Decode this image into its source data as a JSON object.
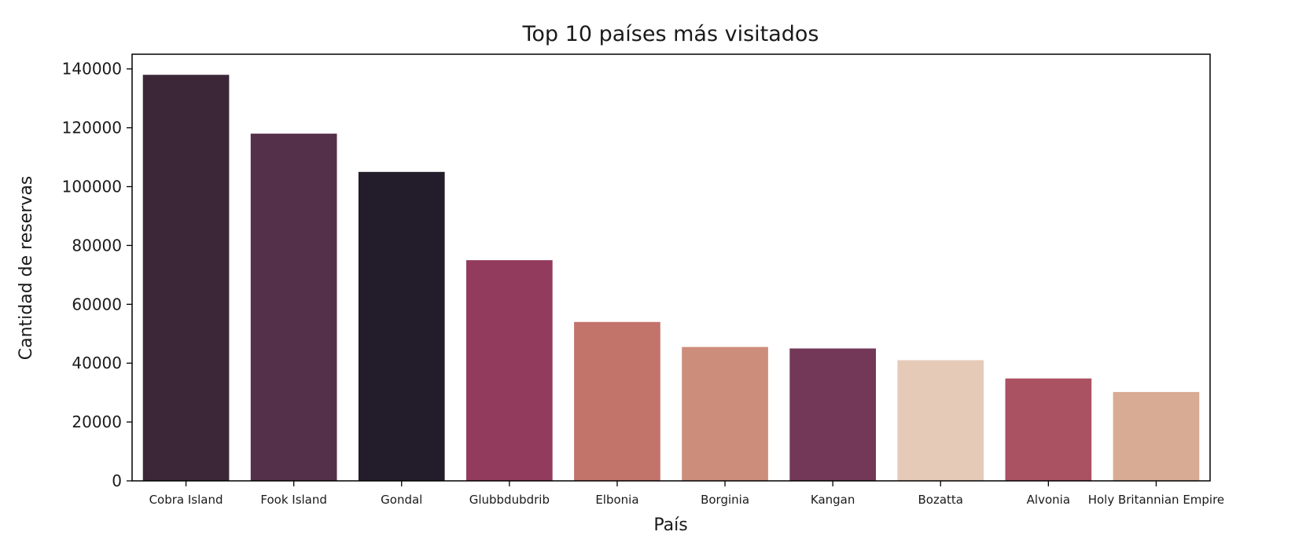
{
  "chart_data": {
    "type": "bar",
    "title": "Top 10 países más visitados",
    "xlabel": "País",
    "ylabel": "Cantidad de reservas",
    "categories": [
      "Cobra Island",
      "Fook Island",
      "Gondal",
      "Glubbdubdrib",
      "Elbonia",
      "Borginia",
      "Kangan",
      "Bozatta",
      "Alvonia",
      "Holy Britannian Empire"
    ],
    "values": [
      138000,
      118000,
      105000,
      75000,
      54000,
      45500,
      45000,
      41000,
      34800,
      30200
    ],
    "colors": [
      "#3c2738",
      "#55304a",
      "#231c2a",
      "#923b5c",
      "#c2736a",
      "#cc8e7b",
      "#733858",
      "#e6cab8",
      "#aa5262",
      "#d7ab94"
    ],
    "ylim": [
      0,
      145000
    ],
    "yticks": [
      0,
      20000,
      40000,
      60000,
      80000,
      100000,
      120000,
      140000
    ],
    "grid": false,
    "legend": "none"
  }
}
